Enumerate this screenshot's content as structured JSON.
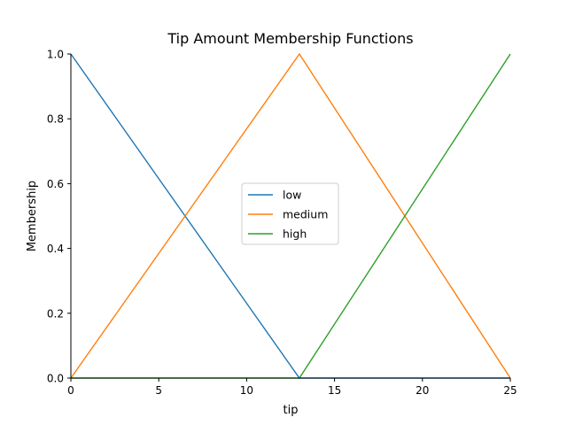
{
  "chart_data": {
    "type": "line",
    "title": "Tip Amount Membership Functions",
    "xlabel": "tip",
    "ylabel": "Membership",
    "xlim": [
      0,
      25
    ],
    "ylim": [
      0,
      1
    ],
    "xticks": [
      "0",
      "5",
      "10",
      "15",
      "20",
      "25"
    ],
    "yticks": [
      "0.0",
      "0.2",
      "0.4",
      "0.6",
      "0.8",
      "1.0"
    ],
    "grid": false,
    "legend_position": "center",
    "series": [
      {
        "name": "low",
        "color": "#1f77b4",
        "x": [
          0,
          13,
          25
        ],
        "y": [
          1.0,
          0.0,
          0.0
        ]
      },
      {
        "name": "medium",
        "color": "#ff7f0e",
        "x": [
          0,
          13,
          25
        ],
        "y": [
          0.0,
          1.0,
          0.0
        ]
      },
      {
        "name": "high",
        "color": "#2ca02c",
        "x": [
          0,
          13,
          25
        ],
        "y": [
          0.0,
          0.0,
          1.0
        ]
      }
    ]
  }
}
